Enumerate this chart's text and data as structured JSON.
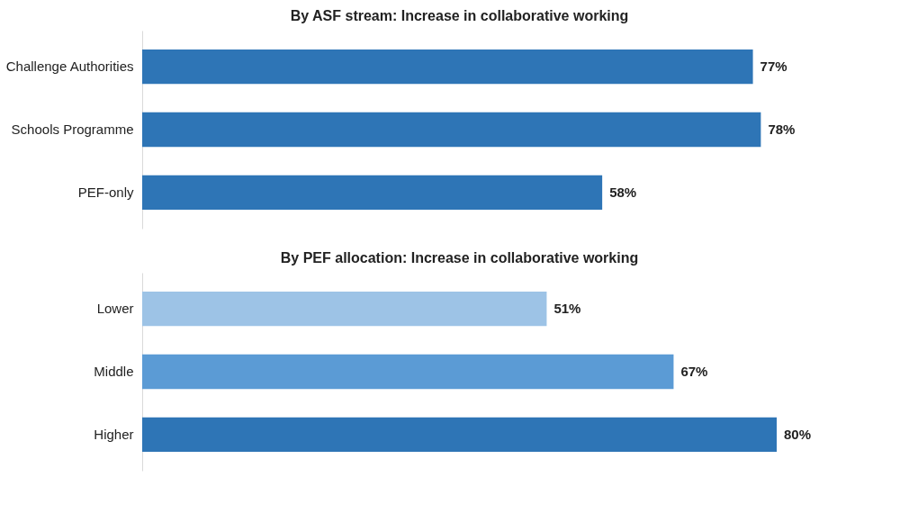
{
  "chart_data": [
    {
      "type": "bar",
      "orientation": "horizontal",
      "title": "By ASF stream: Increase in collaborative working",
      "categories": [
        "Challenge Authorities",
        "Schools Programme",
        "PEF-only"
      ],
      "values": [
        77,
        78,
        58
      ],
      "color": "#2e75b6",
      "value_labels": [
        "77%",
        "78%",
        "58%"
      ]
    },
    {
      "type": "bar",
      "orientation": "horizontal",
      "title": "By PEF allocation: Increase in collaborative working",
      "categories": [
        "Lower",
        "Middle",
        "Higher"
      ],
      "values": [
        51,
        67,
        80
      ],
      "colors": [
        "#9dc3e6",
        "#5b9bd5",
        "#2e75b6"
      ],
      "value_labels": [
        "51%",
        "67%",
        "80%"
      ]
    }
  ]
}
